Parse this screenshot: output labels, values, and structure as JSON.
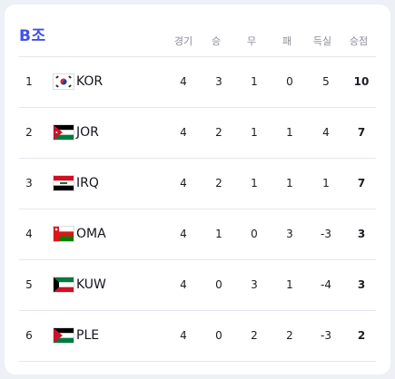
{
  "title": "B조",
  "headers": {
    "played": "경기",
    "won": "승",
    "drawn": "무",
    "lost": "패",
    "goal_diff": "득실",
    "points": "승점"
  },
  "rows": [
    {
      "rank": "1",
      "team": "KOR",
      "played": "4",
      "won": "3",
      "drawn": "1",
      "lost": "0",
      "goal_diff": "5",
      "points": "10",
      "flag": "south-korea-flag"
    },
    {
      "rank": "2",
      "team": "JOR",
      "played": "4",
      "won": "2",
      "drawn": "1",
      "lost": "1",
      "goal_diff": "4",
      "points": "7",
      "flag": "jordan-flag"
    },
    {
      "rank": "3",
      "team": "IRQ",
      "played": "4",
      "won": "2",
      "drawn": "1",
      "lost": "1",
      "goal_diff": "1",
      "points": "7",
      "flag": "iraq-flag"
    },
    {
      "rank": "4",
      "team": "OMA",
      "played": "4",
      "won": "1",
      "drawn": "0",
      "lost": "3",
      "goal_diff": "-3",
      "points": "3",
      "flag": "oman-flag"
    },
    {
      "rank": "5",
      "team": "KUW",
      "played": "4",
      "won": "0",
      "drawn": "3",
      "lost": "1",
      "goal_diff": "-4",
      "points": "3",
      "flag": "kuwait-flag"
    },
    {
      "rank": "6",
      "team": "PLE",
      "played": "4",
      "won": "0",
      "drawn": "2",
      "lost": "2",
      "goal_diff": "-3",
      "points": "2",
      "flag": "palestine-flag"
    }
  ],
  "colors": {
    "title": "#3f51e8",
    "header_text": "#8c8c99",
    "divider": "#e6e7ee",
    "background": "#eef0f8"
  }
}
